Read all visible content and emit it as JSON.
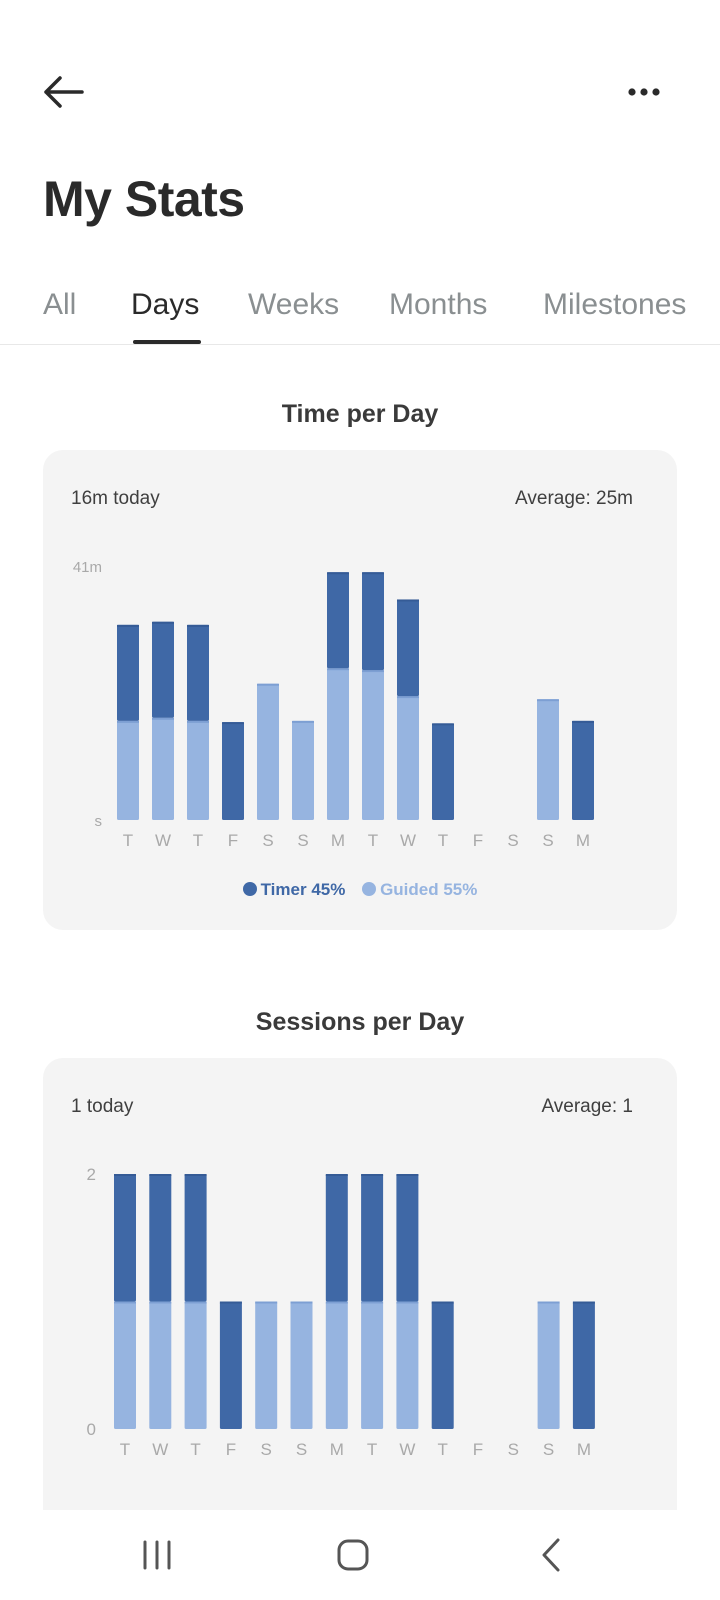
{
  "header": {
    "title": "My Stats",
    "back_icon": "arrow-left-icon",
    "more_icon": "more-horizontal-icon"
  },
  "tabs": [
    {
      "label": "All",
      "active": false
    },
    {
      "label": "Days",
      "active": true
    },
    {
      "label": "Weeks",
      "active": false
    },
    {
      "label": "Months",
      "active": false
    },
    {
      "label": "Milestones",
      "active": false
    }
  ],
  "colors": {
    "timer": "#3f68a6",
    "guided": "#96b4e0",
    "card_bg": "#f4f4f4",
    "axis_text": "#a9a9a9"
  },
  "time_card": {
    "section_title": "Time per Day",
    "today": "16m today",
    "average": "Average: 25m",
    "legend": {
      "timer": "Timer 45%",
      "guided": "Guided 55%"
    }
  },
  "sessions_card": {
    "section_title": "Sessions per Day",
    "today": "1 today",
    "average": "Average: 1"
  },
  "chart_data": [
    {
      "type": "bar",
      "title": "Time per Day",
      "stacked": true,
      "categories": [
        "T",
        "W",
        "T",
        "F",
        "S",
        "S",
        "M",
        "T",
        "W",
        "T",
        "F",
        "S",
        "S",
        "M"
      ],
      "series": [
        {
          "name": "Guided",
          "color": "#96b4e0",
          "values": [
            16,
            16.5,
            16,
            0,
            22,
            16,
            24.5,
            24.2,
            20,
            0,
            0,
            0,
            19.5,
            0
          ]
        },
        {
          "name": "Timer",
          "color": "#3f68a6",
          "values": [
            15.5,
            15.5,
            15.5,
            15.8,
            0,
            0,
            15.5,
            15.8,
            15.6,
            15.6,
            0,
            0,
            0,
            16
          ]
        }
      ],
      "ylim": [
        0,
        41
      ],
      "ytick_labels": [
        "s",
        "41m"
      ],
      "legend": [
        "Timer 45%",
        "Guided 55%"
      ],
      "legend_position": "bottom-center",
      "grid": false
    },
    {
      "type": "bar",
      "title": "Sessions per Day",
      "stacked": true,
      "categories": [
        "T",
        "W",
        "T",
        "F",
        "S",
        "S",
        "M",
        "T",
        "W",
        "T",
        "F",
        "S",
        "S",
        "M"
      ],
      "series": [
        {
          "color": "#96b4e0",
          "values": [
            1,
            1,
            1,
            0,
            1,
            1,
            1,
            1,
            1,
            0,
            0,
            0,
            1,
            0
          ]
        },
        {
          "color": "#3f68a6",
          "values": [
            1,
            1,
            1,
            1,
            0,
            0,
            1,
            1,
            1,
            1,
            0,
            0,
            0,
            1
          ]
        }
      ],
      "ylim": [
        0,
        2
      ],
      "ytick_labels": [
        "0",
        "2"
      ],
      "grid": false
    }
  ],
  "navbar": {
    "recents_icon": "recent-apps-icon",
    "home_icon": "home-icon",
    "back_icon": "nav-back-icon"
  }
}
